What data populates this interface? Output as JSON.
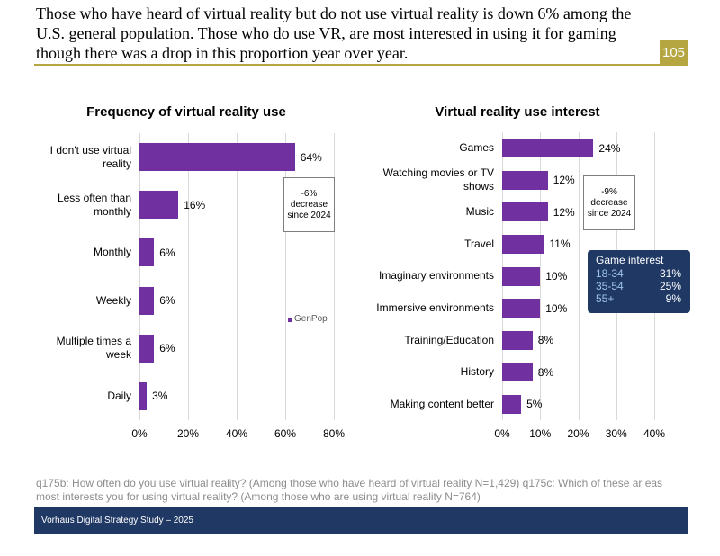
{
  "header": {
    "title": "Those who have heard of virtual reality but do not use virtual reality is down 6% among the U.S. general population. Those who do use VR, are most interested in using it for gaming though there was a drop in this proportion year over year.",
    "page_number": "105"
  },
  "chart_data": [
    {
      "type": "bar",
      "orientation": "horizontal",
      "title": "Frequency of virtual reality use",
      "categories": [
        "I don't use virtual reality",
        "Less often than monthly",
        "Monthly",
        "Weekly",
        "Multiple times a week",
        "Daily"
      ],
      "series": [
        {
          "name": "GenPop",
          "color": "#7030a0",
          "values": [
            64,
            16,
            6,
            6,
            6,
            3
          ],
          "value_labels": [
            "64%",
            "16%",
            "6%",
            "6%",
            "6%",
            "3%"
          ]
        }
      ],
      "xlim": [
        0,
        80
      ],
      "xticks": [
        {
          "value": 0,
          "label": "0%"
        },
        {
          "value": 20,
          "label": "20%"
        },
        {
          "value": 40,
          "label": "40%"
        },
        {
          "value": 60,
          "label": "60%"
        },
        {
          "value": 80,
          "label": "80%"
        }
      ],
      "grid": true,
      "legend": "right",
      "annotation": "-6% decrease since 2024"
    },
    {
      "type": "bar",
      "orientation": "horizontal",
      "title": "Virtual reality use interest",
      "categories": [
        "Games",
        "Watching movies or TV shows",
        "Music",
        "Travel",
        "Imaginary environments",
        "Immersive environments",
        "Training/Education",
        "History",
        "Making content better"
      ],
      "series": [
        {
          "name": "GenPop",
          "color": "#7030a0",
          "values": [
            24,
            12,
            12,
            11,
            10,
            10,
            8,
            8,
            5
          ],
          "value_labels": [
            "24%",
            "12%",
            "12%",
            "11%",
            "10%",
            "10%",
            "8%",
            "8%",
            "5%"
          ]
        }
      ],
      "xlim": [
        0,
        40
      ],
      "xticks": [
        {
          "value": 0,
          "label": "0%"
        },
        {
          "value": 10,
          "label": "10%"
        },
        {
          "value": 20,
          "label": "20%"
        },
        {
          "value": 30,
          "label": "30%"
        },
        {
          "value": 40,
          "label": "40%"
        }
      ],
      "grid": true,
      "annotation": "-9% decrease since 2024",
      "inset": {
        "title": "Game interest",
        "rows": [
          [
            "18-34",
            "31%"
          ],
          [
            "35-54",
            "25%"
          ],
          [
            "55+",
            "9%"
          ]
        ]
      }
    }
  ],
  "footnote": "q175b: How often do you use virtual reality? (Among those who have heard of virtual reality N=1,429) q175c: Which of these ar eas most interests you for using virtual reality? (Among those who are using virtual reality N=764)",
  "footer": "Vorhaus Digital Strategy Study – 2025"
}
